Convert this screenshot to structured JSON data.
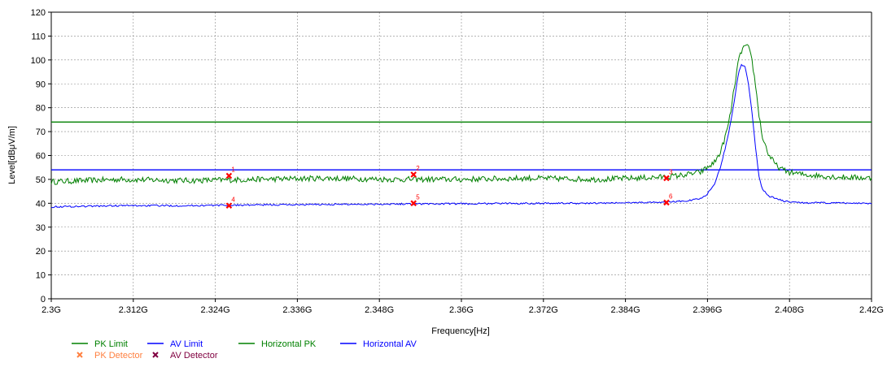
{
  "chart_data": {
    "type": "line",
    "xlabel": "Frequency[Hz]",
    "ylabel": "Level[dBμV/m]",
    "xlim": [
      2.3,
      2.42
    ],
    "ylim": [
      0,
      120
    ],
    "x_ticks": [
      2.3,
      2.312,
      2.324,
      2.336,
      2.348,
      2.36,
      2.372,
      2.384,
      2.396,
      2.408,
      2.42
    ],
    "x_tick_labels": [
      "2.3G",
      "2.312G",
      "2.324G",
      "2.336G",
      "2.348G",
      "2.36G",
      "2.372G",
      "2.384G",
      "2.396G",
      "2.408G",
      "2.42G"
    ],
    "y_ticks": [
      0,
      10,
      20,
      30,
      40,
      50,
      60,
      70,
      80,
      90,
      100,
      110,
      120
    ],
    "y_tick_labels": [
      "0",
      "10",
      "20",
      "30",
      "40",
      "50",
      "60",
      "70",
      "80",
      "90",
      "100",
      "110",
      "120"
    ],
    "grid": true,
    "legend_position": "bottom-left",
    "limits": [
      {
        "name": "PK Limit",
        "value": 74,
        "color": "#008000"
      },
      {
        "name": "AV Limit",
        "value": 54,
        "color": "#0000ff"
      }
    ],
    "series": [
      {
        "name": "Horizontal PK",
        "color": "#008000",
        "x": [
          2.3,
          2.31,
          2.32,
          2.33,
          2.34,
          2.35,
          2.36,
          2.37,
          2.38,
          2.39,
          2.393,
          2.395,
          2.396,
          2.397,
          2.398,
          2.399,
          2.3995,
          2.4,
          2.4005,
          2.401,
          2.4015,
          2.402,
          2.4025,
          2.403,
          2.4035,
          2.404,
          2.405,
          2.406,
          2.407,
          2.408,
          2.41,
          2.415,
          2.42
        ],
        "y": [
          49,
          50,
          49.5,
          50,
          50.5,
          50,
          50,
          50.5,
          50,
          51,
          52,
          53,
          55,
          57,
          62,
          72,
          80,
          90,
          99,
          104,
          106,
          105,
          100,
          90,
          78,
          68,
          60,
          56,
          54,
          53,
          52,
          51,
          50.5
        ]
      },
      {
        "name": "Horizontal AV",
        "color": "#0000ff",
        "x": [
          2.3,
          2.31,
          2.32,
          2.33,
          2.34,
          2.35,
          2.36,
          2.37,
          2.38,
          2.39,
          2.393,
          2.395,
          2.396,
          2.397,
          2.398,
          2.399,
          2.4,
          2.4005,
          2.401,
          2.4015,
          2.402,
          2.4025,
          2.403,
          2.4035,
          2.404,
          2.405,
          2.406,
          2.407,
          2.408,
          2.41,
          2.42
        ],
        "y": [
          38.5,
          39,
          39,
          39.3,
          39.5,
          39.7,
          39.8,
          40,
          40,
          40.5,
          41,
          42,
          44,
          48,
          56,
          68,
          84,
          94,
          98,
          97,
          90,
          78,
          64,
          52,
          46,
          43,
          42,
          41,
          40.5,
          40.2,
          40
        ]
      }
    ],
    "markers": [
      {
        "label": "1",
        "x": 2.326,
        "y": 51.5,
        "detector": "PK Detector"
      },
      {
        "label": "2",
        "x": 2.353,
        "y": 52,
        "detector": "PK Detector"
      },
      {
        "label": "3",
        "x": 2.39,
        "y": 50.5,
        "detector": "PK Detector"
      },
      {
        "label": "4",
        "x": 2.326,
        "y": 39,
        "detector": "AV Detector"
      },
      {
        "label": "5",
        "x": 2.353,
        "y": 40,
        "detector": "AV Detector"
      },
      {
        "label": "6",
        "x": 2.39,
        "y": 40.3,
        "detector": "AV Detector"
      }
    ],
    "legend": [
      {
        "label": "PK Limit",
        "symbol": "line",
        "color": "#008000",
        "text_color": "#008000"
      },
      {
        "label": "AV Limit",
        "symbol": "line",
        "color": "#0000ff",
        "text_color": "#0000ff"
      },
      {
        "label": "Horizontal PK",
        "symbol": "line",
        "color": "#008000",
        "text_color": "#008000"
      },
      {
        "label": "Horizontal AV",
        "symbol": "line",
        "color": "#0000ff",
        "text_color": "#0000ff"
      },
      {
        "label": "PK Detector",
        "symbol": "x",
        "color": "#ff8040",
        "text_color": "#ff8040"
      },
      {
        "label": "AV Detector",
        "symbol": "x",
        "color": "#800040",
        "text_color": "#800040"
      }
    ],
    "marker_color": "#ff0000"
  }
}
